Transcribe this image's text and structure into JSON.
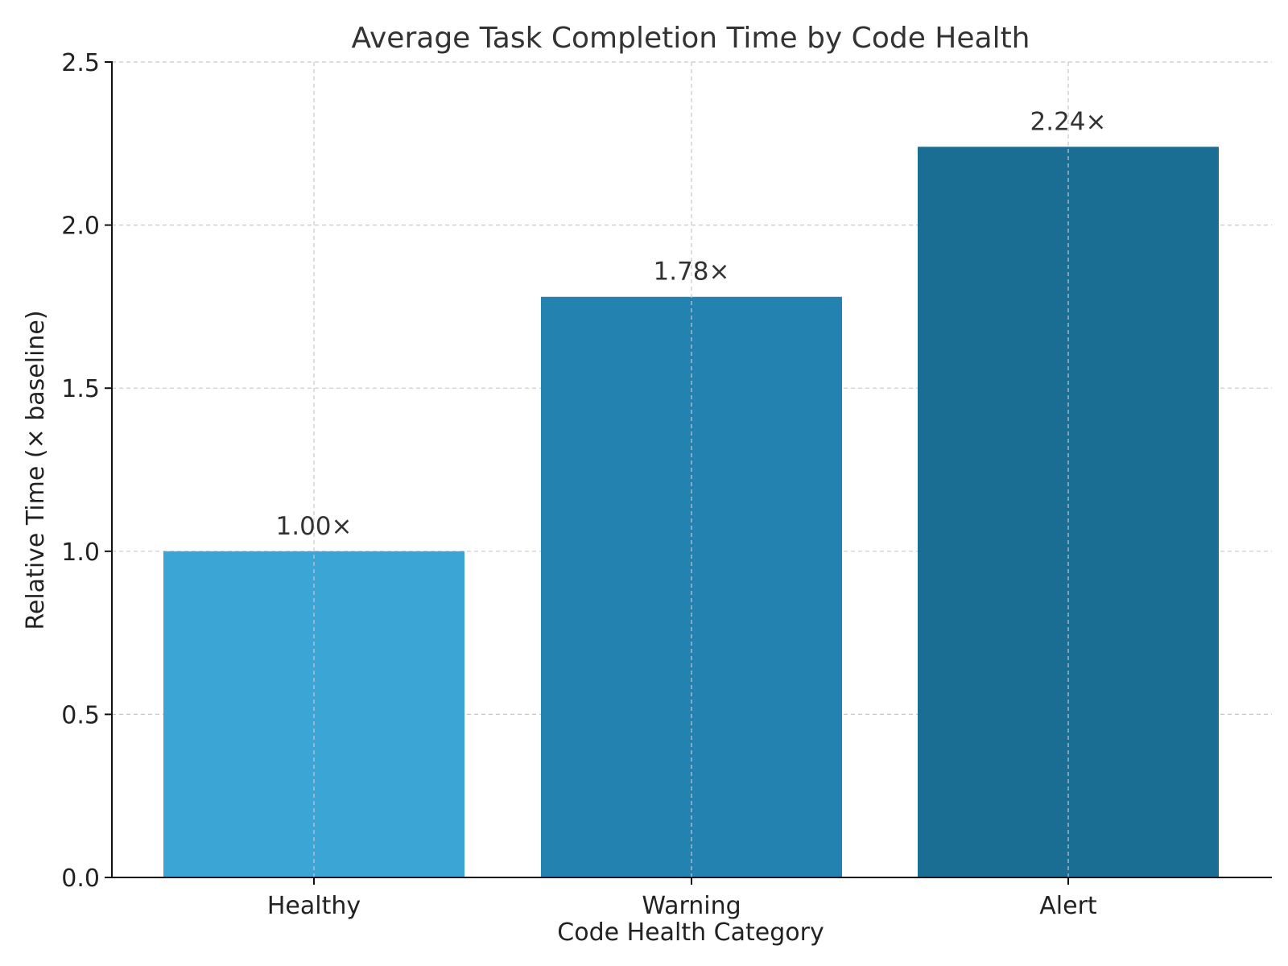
{
  "chart_data": {
    "type": "bar",
    "title": "Average Task Completion Time by Code Health",
    "xlabel": "Code Health Category",
    "ylabel": "Relative Time (× baseline)",
    "categories": [
      "Healthy",
      "Warning",
      "Alert"
    ],
    "values": [
      1.0,
      1.78,
      2.24
    ],
    "data_labels": [
      "1.00×",
      "1.78×",
      "2.24×"
    ],
    "colors": [
      "#3ba5d6",
      "#2382b0",
      "#1a6d93"
    ],
    "ylim": [
      0,
      2.5
    ],
    "yticks": [
      0.0,
      0.5,
      1.0,
      1.5,
      2.0,
      2.5
    ],
    "ytick_labels": [
      "0.0",
      "0.5",
      "1.0",
      "1.5",
      "2.0",
      "2.5"
    ],
    "grid": true,
    "legend": "none"
  }
}
